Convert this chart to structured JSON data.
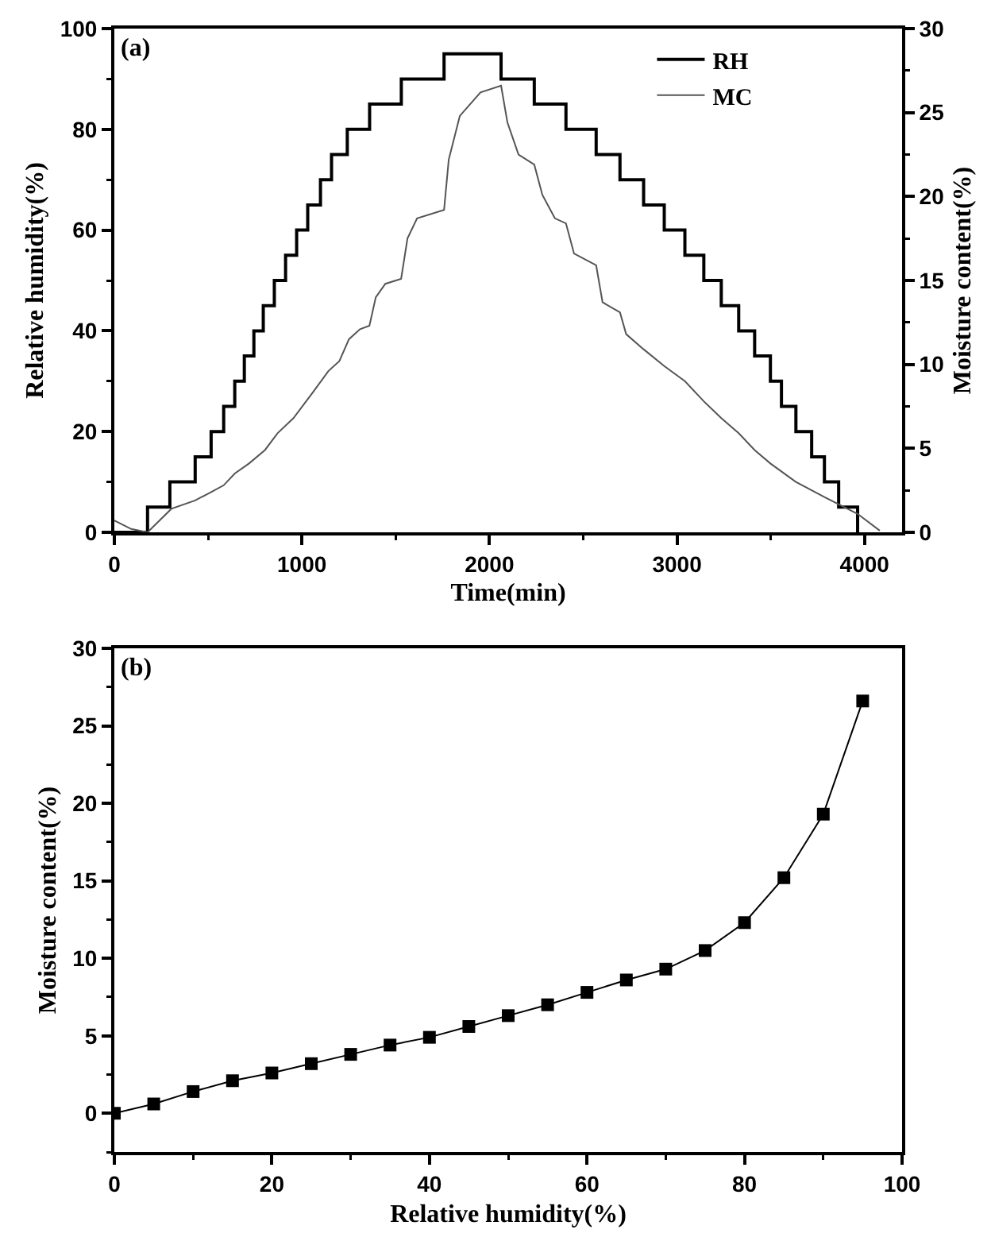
{
  "chart_data": [
    {
      "type": "line",
      "xlabel": "Time(min)",
      "ylabel": "Relative humidity(%)",
      "y2label": "Moisture content(%)",
      "annotations": [
        "(a)"
      ],
      "legend": "top right",
      "xlim": [
        0,
        4200
      ],
      "xticks": [
        0,
        1000,
        2000,
        3000,
        4000
      ],
      "ylim": [
        0,
        100
      ],
      "yticks": [
        0,
        20,
        40,
        60,
        80,
        100
      ],
      "y2lim": [
        0,
        30
      ],
      "y2ticks": [
        0,
        5,
        10,
        15,
        20,
        25,
        30
      ],
      "series": [
        {
          "name": "RH",
          "type": "step",
          "color": "#000000",
          "x": [
            0,
            177,
            296,
            431,
            516,
            583,
            642,
            693,
            744,
            794,
            853,
            913,
            972,
            1031,
            1099,
            1158,
            1242,
            1361,
            1530,
            1758,
            2062,
            2239,
            2408,
            2569,
            2696,
            2822,
            2932,
            3042,
            3143,
            3236,
            3329,
            3414,
            3498,
            3557,
            3634,
            3718,
            3786,
            3862,
            3963
          ],
          "values": [
            0,
            5,
            10,
            15,
            20,
            25,
            30,
            35,
            40,
            45,
            50,
            55,
            60,
            65,
            70,
            75,
            80,
            85,
            90,
            95,
            90,
            85,
            80,
            75,
            70,
            65,
            60,
            55,
            50,
            45,
            40,
            35,
            30,
            25,
            20,
            15,
            10,
            5,
            0
          ]
        },
        {
          "name": "MC",
          "type": "line",
          "axis": "y2",
          "color": "#555555",
          "x": [
            0,
            90,
            177,
            304,
            431,
            516,
            583,
            642,
            718,
            803,
            870,
            955,
            1056,
            1141,
            1200,
            1251,
            1310,
            1360,
            1394,
            1445,
            1529,
            1563,
            1614,
            1758,
            1783,
            1842,
            1952,
            2062,
            2096,
            2155,
            2239,
            2282,
            2349,
            2408,
            2451,
            2569,
            2603,
            2696,
            2729,
            2822,
            2932,
            3042,
            3143,
            3236,
            3329,
            3414,
            3498,
            3634,
            3786,
            3963,
            4081
          ],
          "values": [
            0.7,
            0.2,
            0,
            1.4,
            1.9,
            2.4,
            2.8,
            3.5,
            4.1,
            4.9,
            5.9,
            6.8,
            8.3,
            9.6,
            10.2,
            11.5,
            12.1,
            12.3,
            14.0,
            14.8,
            15.1,
            17.5,
            18.7,
            19.2,
            22.2,
            24.8,
            26.2,
            26.6,
            24.4,
            22.5,
            21.9,
            20.1,
            18.7,
            18.4,
            16.6,
            15.9,
            13.7,
            13.1,
            11.8,
            10.9,
            9.9,
            9.0,
            7.8,
            6.8,
            5.9,
            4.9,
            4.1,
            3.0,
            2.1,
            1.1,
            0.1
          ]
        }
      ]
    },
    {
      "type": "line",
      "xlabel": "Relative humidity(%)",
      "ylabel": "Moisture content(%)",
      "annotations": [
        "(b)"
      ],
      "marker": "square",
      "xlim": [
        0,
        100
      ],
      "xticks": [
        0,
        20,
        40,
        60,
        80,
        100
      ],
      "ylim": [
        -2.5,
        30
      ],
      "yticks": [
        0,
        5,
        10,
        15,
        20,
        25,
        30
      ],
      "series": [
        {
          "color": "#000000",
          "x": [
            0,
            5,
            10,
            15,
            20,
            25,
            30,
            35,
            40,
            45,
            50,
            55,
            60,
            65,
            70,
            75,
            80,
            85,
            90,
            95
          ],
          "values": [
            0,
            0.6,
            1.4,
            2.1,
            2.6,
            3.2,
            3.8,
            4.4,
            4.9,
            5.6,
            6.3,
            7.0,
            7.8,
            8.6,
            9.3,
            10.5,
            12.3,
            15.2,
            19.3,
            26.6
          ]
        }
      ]
    }
  ]
}
